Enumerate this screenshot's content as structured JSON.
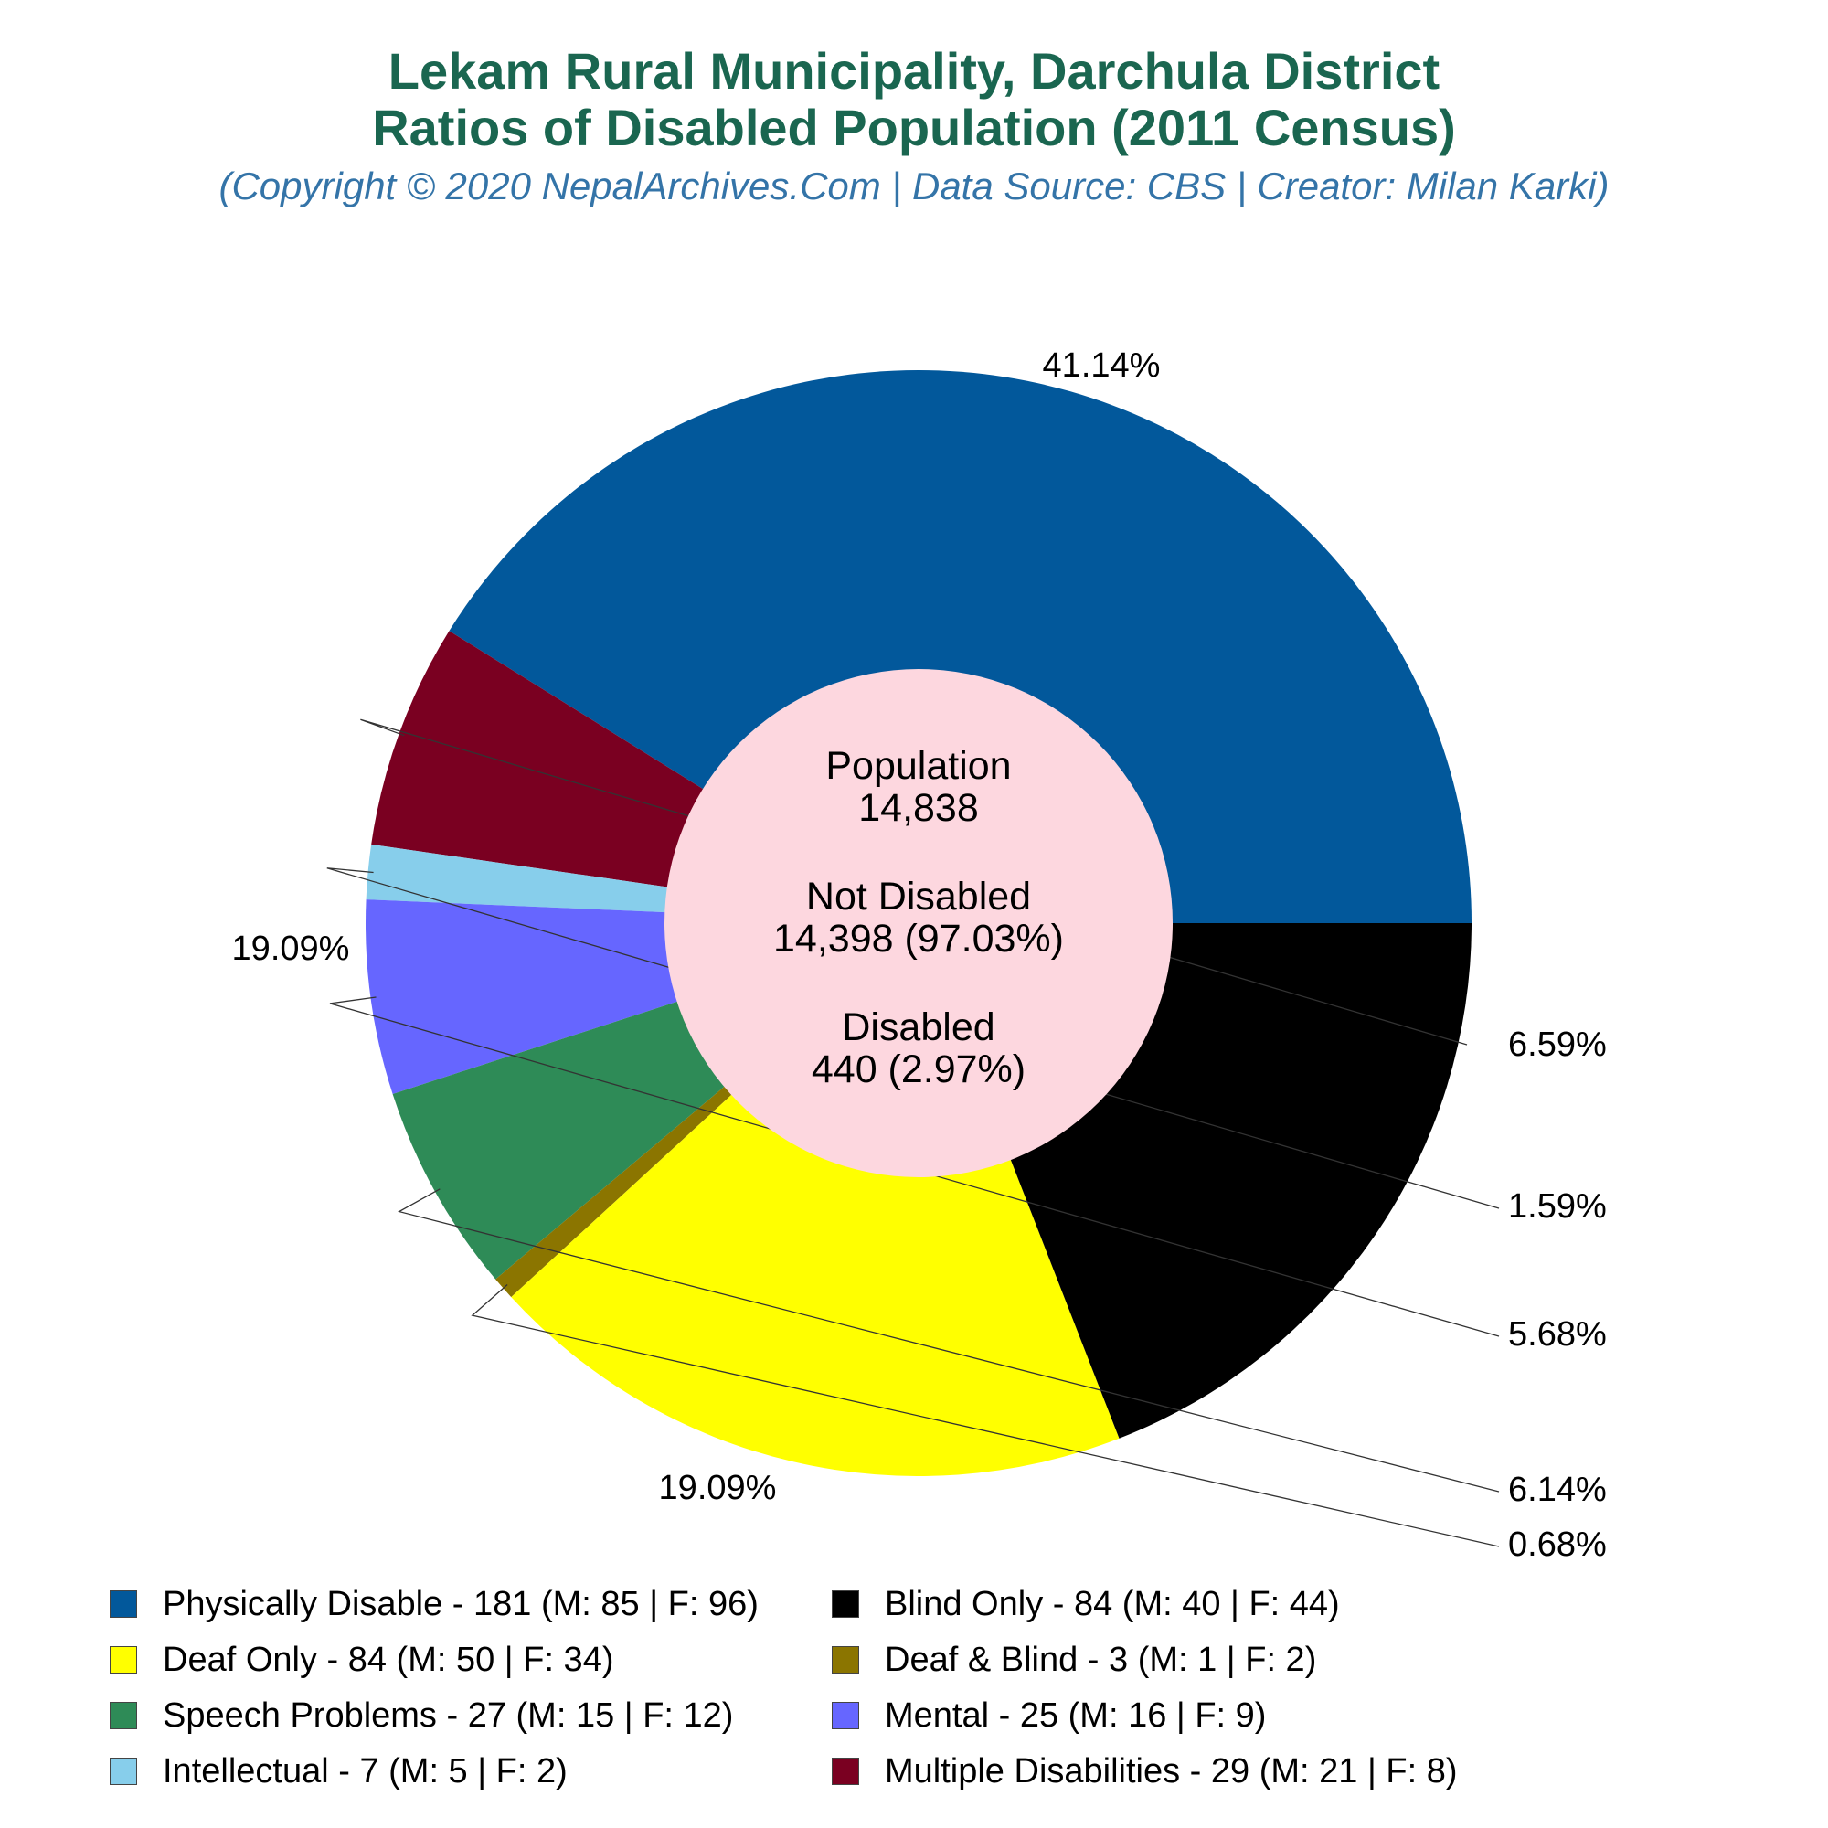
{
  "chart_data": {
    "type": "pie",
    "title_line1": "Lekam Rural Municipality, Darchula District",
    "title_line2": "Ratios of Disabled Population (2011 Census)",
    "subtitle": "(Copyright © 2020 NepalArchives.Com | Data Source: CBS | Creator: Milan Karki)",
    "center": {
      "population_label": "Population",
      "population_value": "14,838",
      "not_disabled_label": "Not Disabled",
      "not_disabled_value": "14,398 (97.03%)",
      "disabled_label": "Disabled",
      "disabled_value": "440 (2.97%)"
    },
    "slices": [
      {
        "name": "Physically Disable",
        "value": 181,
        "male": 85,
        "female": 96,
        "percent_label": "41.14%",
        "color": "#02589b",
        "legend": "Physically Disable - 181 (M: 85 | F: 96)"
      },
      {
        "name": "Multiple Disabilities",
        "value": 29,
        "male": 21,
        "female": 8,
        "percent_label": "6.59%",
        "color": "#7a0021",
        "legend": "Multiple Disabilities - 29 (M: 21 | F: 8)"
      },
      {
        "name": "Intellectual",
        "value": 7,
        "male": 5,
        "female": 2,
        "percent_label": "1.59%",
        "color": "#87ceeb",
        "legend": "Intellectual - 7 (M: 5 | F: 2)"
      },
      {
        "name": "Mental",
        "value": 25,
        "male": 16,
        "female": 9,
        "percent_label": "5.68%",
        "color": "#6666ff",
        "legend": "Mental - 25 (M: 16 | F: 9)"
      },
      {
        "name": "Speech Problems",
        "value": 27,
        "male": 15,
        "female": 12,
        "percent_label": "6.14%",
        "color": "#2e8b57",
        "legend": "Speech Problems - 27 (M: 15 | F: 12)"
      },
      {
        "name": "Deaf & Blind",
        "value": 3,
        "male": 1,
        "female": 2,
        "percent_label": "0.68%",
        "color": "#8b7500",
        "legend": "Deaf & Blind - 3 (M: 1 | F: 2)"
      },
      {
        "name": "Deaf Only",
        "value": 84,
        "male": 50,
        "female": 34,
        "percent_label": "19.09%",
        "color": "#ffff00",
        "legend": "Deaf Only - 84 (M: 50 | F: 34)"
      },
      {
        "name": "Blind Only",
        "value": 84,
        "male": 40,
        "female": 44,
        "percent_label": "19.09%",
        "color": "#000000",
        "legend": "Blind Only - 84 (M: 40 | F: 44)"
      }
    ],
    "legend_order": [
      "Physically Disable",
      "Blind Only",
      "Deaf Only",
      "Deaf & Blind",
      "Speech Problems",
      "Mental",
      "Intellectual",
      "Multiple Disabilities"
    ],
    "hole_color": "#fdd7df",
    "legend_position": "bottom"
  }
}
